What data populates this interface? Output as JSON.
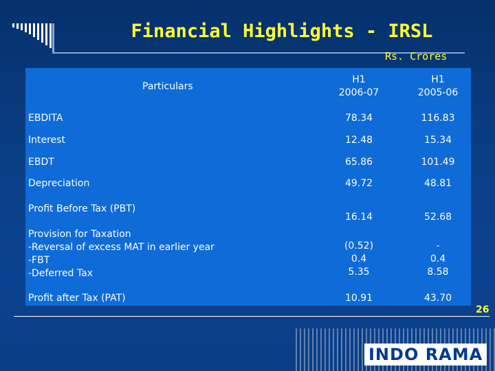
{
  "slide": {
    "title": "Financial Highlights - IRSL",
    "units": "Rs. Crores",
    "page_number": "26",
    "logo_text": "INDO RAMA"
  },
  "table": {
    "header": {
      "particulars": "Particulars",
      "col_a": "H1\n2006-07",
      "col_b": "H1\n2005-06"
    },
    "rows": [
      {
        "label": "EBDITA",
        "a": "78.34",
        "b": "116.83"
      },
      {
        "label": "Interest",
        "a": "12.48",
        "b": "15.34"
      },
      {
        "label": "EBDT",
        "a": "65.86",
        "b": "101.49"
      },
      {
        "label": "Depreciation",
        "a": "49.72",
        "b": "48.81"
      },
      {
        "label": "Profit Before Tax (PBT)",
        "a": "16.14",
        "b": "52.68"
      },
      {
        "label": "Provision for Taxation\n-Reversal of excess MAT in earlier year\n-FBT\n-Deferred Tax",
        "a": "(0.52)\n0.4\n5.35",
        "b": "-\n0.4\n8.58"
      },
      {
        "label": "Profit after Tax (PAT)",
        "a": "10.91",
        "b": "43.70"
      }
    ]
  }
}
